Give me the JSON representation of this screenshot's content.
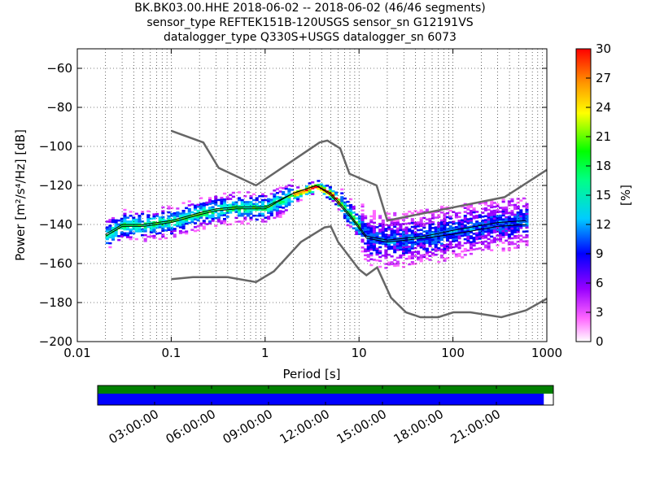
{
  "title": {
    "line1": "BK.BK03.00.HHE   2018-06-02 -- 2018-06-02  (46/46 segments)",
    "line2": "sensor_type REFTEK151B-120USGS sensor_sn G12191VS",
    "line3": "datalogger_type Q330S+USGS datalogger_sn 6073"
  },
  "chart_data": {
    "type": "heatmap",
    "xlabel": "Period [s]",
    "ylabel": "Power [m²/s⁴/Hz] [dB]",
    "xscale": "log",
    "xlim": [
      0.01,
      1000
    ],
    "ylim": [
      -200,
      -50
    ],
    "xticks": [
      "0.01",
      "0.1",
      "1",
      "10",
      "100",
      "1000"
    ],
    "yticks": [
      "−200",
      "−180",
      "−160",
      "−140",
      "−120",
      "−100",
      "−80",
      "−60"
    ],
    "ytick_values": [
      -200,
      -180,
      -160,
      -140,
      -120,
      -100,
      -80,
      -60
    ],
    "grid": true,
    "colorbar": {
      "label": "[%]",
      "range": [
        0,
        30
      ],
      "ticks": [
        "0",
        "3",
        "6",
        "9",
        "12",
        "15",
        "18",
        "21",
        "24",
        "27",
        "30"
      ]
    },
    "nhnm": [
      [
        0.1,
        -92
      ],
      [
        0.22,
        -98
      ],
      [
        0.32,
        -111
      ],
      [
        0.8,
        -120
      ],
      [
        3.8,
        -98
      ],
      [
        4.6,
        -97
      ],
      [
        6.3,
        -101
      ],
      [
        7.9,
        -114
      ],
      [
        15.4,
        -120
      ],
      [
        20,
        -138
      ],
      [
        354,
        -126
      ],
      [
        1000,
        -112
      ]
    ],
    "nlnm": [
      [
        0.1,
        -168
      ],
      [
        0.17,
        -167
      ],
      [
        0.4,
        -167
      ],
      [
        0.8,
        -169.5
      ],
      [
        1.24,
        -164
      ],
      [
        2.4,
        -149
      ],
      [
        4.3,
        -141.5
      ],
      [
        5,
        -141
      ],
      [
        6,
        -149
      ],
      [
        10,
        -163
      ],
      [
        12,
        -166
      ],
      [
        15.6,
        -162
      ],
      [
        21.9,
        -177.5
      ],
      [
        31.6,
        -185
      ],
      [
        45,
        -187.5
      ],
      [
        70,
        -187.5
      ],
      [
        101,
        -185
      ],
      [
        154,
        -185
      ],
      [
        328,
        -187.5
      ],
      [
        600,
        -184
      ],
      [
        1000,
        -178
      ]
    ],
    "mean": [
      [
        0.02,
        -145
      ],
      [
        0.03,
        -140
      ],
      [
        0.05,
        -140
      ],
      [
        0.1,
        -138
      ],
      [
        0.2,
        -134
      ],
      [
        0.3,
        -132
      ],
      [
        0.5,
        -131
      ],
      [
        1,
        -131
      ],
      [
        2,
        -124
      ],
      [
        3.5,
        -120
      ],
      [
        5,
        -124
      ],
      [
        8,
        -135
      ],
      [
        12,
        -146
      ],
      [
        20,
        -148
      ],
      [
        50,
        -146
      ],
      [
        100,
        -143
      ],
      [
        300,
        -139
      ],
      [
        600,
        -138
      ]
    ],
    "mode": [
      [
        0.02,
        -146
      ],
      [
        0.03,
        -141
      ],
      [
        0.05,
        -141
      ],
      [
        0.1,
        -139
      ],
      [
        0.2,
        -135
      ],
      [
        0.3,
        -133
      ],
      [
        0.5,
        -132
      ],
      [
        1,
        -132
      ],
      [
        2,
        -124
      ],
      [
        3.5,
        -120
      ],
      [
        5,
        -125
      ],
      [
        8,
        -136
      ],
      [
        12,
        -147
      ],
      [
        20,
        -149
      ],
      [
        50,
        -147
      ],
      [
        100,
        -145
      ],
      [
        300,
        -141
      ],
      [
        600,
        -140
      ]
    ]
  },
  "timeline": {
    "labels": [
      "03:00:00",
      "06:00:00",
      "09:00:00",
      "12:00:00",
      "15:00:00",
      "18:00:00",
      "21:00:00"
    ],
    "coverage_fraction": 0.979,
    "colors": {
      "data": "#008000",
      "processed": "#0000ff"
    }
  }
}
